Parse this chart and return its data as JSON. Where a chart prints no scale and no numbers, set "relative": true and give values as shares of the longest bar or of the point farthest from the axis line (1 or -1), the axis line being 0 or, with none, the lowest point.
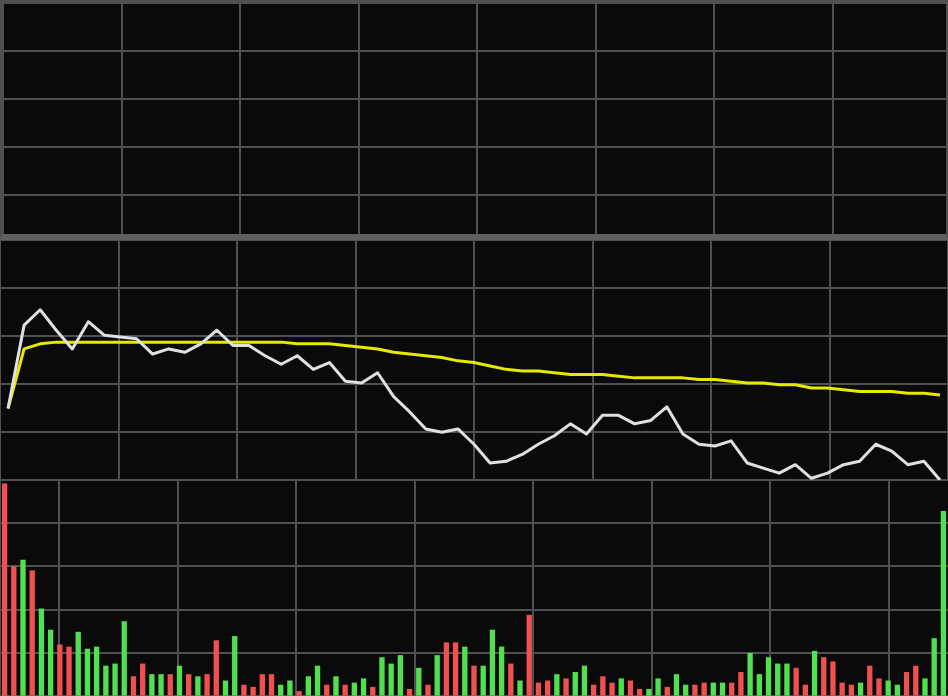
{
  "chart_data": [
    {
      "type": "line",
      "relative": true,
      "grid": true,
      "legend": false,
      "tick_labels": false,
      "categories": [
        null,
        null,
        null,
        null,
        null,
        null,
        null,
        null,
        null,
        null,
        null,
        null,
        null,
        null,
        null,
        null,
        null,
        null,
        null,
        null,
        null,
        null,
        null,
        null,
        null,
        null,
        null,
        null,
        null,
        null,
        null,
        null,
        null,
        null,
        null,
        null,
        null,
        null,
        null,
        null,
        null,
        null,
        null,
        null,
        null,
        null,
        null,
        null,
        null,
        null,
        null,
        null,
        null,
        null,
        null,
        null,
        null,
        null,
        null
      ],
      "series": [
        {
          "color": "#e0e0e0",
          "values": [
            0.42,
            0.91,
            1,
            0.88,
            0.77,
            0.93,
            0.85,
            0.84,
            0.83,
            0.74,
            0.77,
            0.75,
            0.8,
            0.88,
            0.79,
            0.79,
            0.73,
            0.68,
            0.73,
            0.65,
            0.69,
            0.58,
            0.57,
            0.63,
            0.49,
            0.4,
            0.3,
            0.28,
            0.3,
            0.21,
            0.1,
            0.11,
            0.15,
            0.21,
            0.26,
            0.33,
            0.27,
            0.38,
            0.38,
            0.33,
            0.35,
            0.43,
            0.27,
            0.21,
            0.2,
            0.23,
            0.1,
            0.07,
            0.04,
            0.09,
            0.01,
            0.04,
            0.09,
            0.11,
            0.21,
            0.17,
            0.09,
            0.11,
            0
          ]
        },
        {
          "color": "#e8e800",
          "values": [
            0.42,
            0.77,
            0.8,
            0.81,
            0.81,
            0.81,
            0.81,
            0.81,
            0.81,
            0.81,
            0.81,
            0.81,
            0.81,
            0.81,
            0.81,
            0.81,
            0.81,
            0.81,
            0.8,
            0.8,
            0.8,
            0.79,
            0.78,
            0.77,
            0.75,
            0.74,
            0.73,
            0.72,
            0.7,
            0.69,
            0.67,
            0.65,
            0.64,
            0.64,
            0.63,
            0.62,
            0.62,
            0.62,
            0.61,
            0.6,
            0.6,
            0.6,
            0.6,
            0.59,
            0.59,
            0.58,
            0.57,
            0.57,
            0.56,
            0.56,
            0.54,
            0.54,
            0.53,
            0.52,
            0.52,
            0.52,
            0.51,
            0.51,
            0.5
          ]
        }
      ]
    },
    {
      "type": "bar",
      "relative": true,
      "grid": true,
      "legend": false,
      "tick_labels": false,
      "categories": [
        null,
        null,
        null,
        null,
        null,
        null,
        null,
        null,
        null,
        null,
        null,
        null,
        null,
        null,
        null,
        null,
        null,
        null,
        null,
        null,
        null,
        null,
        null,
        null,
        null,
        null,
        null,
        null,
        null,
        null,
        null,
        null,
        null,
        null,
        null,
        null,
        null,
        null,
        null,
        null,
        null,
        null,
        null,
        null,
        null,
        null,
        null,
        null,
        null,
        null,
        null,
        null,
        null,
        null,
        null,
        null,
        null,
        null,
        null,
        null,
        null,
        null,
        null,
        null,
        null,
        null,
        null,
        null,
        null,
        null,
        null,
        null,
        null,
        null,
        null,
        null,
        null,
        null,
        null,
        null,
        null,
        null,
        null,
        null,
        null,
        null,
        null,
        null,
        null,
        null,
        null,
        null,
        null,
        null,
        null,
        null,
        null,
        null,
        null,
        null,
        null,
        null,
        null
      ],
      "values": [
        1,
        0.61,
        0.64,
        0.59,
        0.41,
        0.31,
        0.24,
        0.23,
        0.3,
        0.22,
        0.23,
        0.14,
        0.15,
        0.35,
        0.09,
        0.15,
        0.1,
        0.1,
        0.1,
        0.14,
        0.1,
        0.09,
        0.1,
        0.26,
        0.07,
        0.28,
        0.05,
        0.04,
        0.1,
        0.1,
        0.05,
        0.07,
        0.02,
        0.09,
        0.14,
        0.05,
        0.09,
        0.05,
        0.06,
        0.08,
        0.04,
        0.18,
        0.15,
        0.19,
        0.03,
        0.13,
        0.05,
        0.19,
        0.25,
        0.25,
        0.23,
        0.14,
        0.14,
        0.31,
        0.23,
        0.15,
        0.07,
        0.38,
        0.06,
        0.07,
        0.1,
        0.08,
        0.11,
        0.14,
        0.05,
        0.09,
        0.06,
        0.08,
        0.07,
        0.03,
        0.03,
        0.08,
        0.04,
        0.1,
        0.05,
        0.05,
        0.06,
        0.06,
        0.06,
        0.06,
        0.11,
        0.2,
        0.1,
        0.18,
        0.15,
        0.15,
        0.13,
        0.05,
        0.21,
        0.18,
        0.16,
        0.06,
        0.05,
        0.06,
        0.14,
        0.08,
        0.07,
        0.05,
        0.11,
        0.14,
        0.08,
        0.27,
        0.87
      ],
      "colors": [
        "#f05050",
        "#f05050",
        "#50e050",
        "#f05050",
        "#50e050",
        "#50e050",
        "#f05050",
        "#f05050",
        "#50e050",
        "#50e050",
        "#50e050",
        "#50e050",
        "#50e050",
        "#50e050",
        "#f05050",
        "#f05050",
        "#50e050",
        "#50e050",
        "#f05050",
        "#50e050",
        "#f05050",
        "#50e050",
        "#f05050",
        "#f05050",
        "#50e050",
        "#50e050",
        "#f05050",
        "#f05050",
        "#f05050",
        "#f05050",
        "#50e050",
        "#50e050",
        "#f05050",
        "#50e050",
        "#50e050",
        "#f05050",
        "#50e050",
        "#f05050",
        "#50e050",
        "#50e050",
        "#f05050",
        "#50e050",
        "#50e050",
        "#50e050",
        "#f05050",
        "#50e050",
        "#f05050",
        "#50e050",
        "#f05050",
        "#f05050",
        "#50e050",
        "#f05050",
        "#50e050",
        "#50e050",
        "#50e050",
        "#f05050",
        "#50e050",
        "#f05050",
        "#f05050",
        "#f05050",
        "#50e050",
        "#f05050",
        "#50e050",
        "#50e050",
        "#f05050",
        "#f05050",
        "#f05050",
        "#50e050",
        "#f05050",
        "#f05050",
        "#50e050",
        "#50e050",
        "#f05050",
        "#50e050",
        "#50e050",
        "#f05050",
        "#f05050",
        "#50e050",
        "#50e050",
        "#f05050",
        "#f05050",
        "#50e050",
        "#50e050",
        "#50e050",
        "#50e050",
        "#50e050",
        "#f05050",
        "#f05050",
        "#50e050",
        "#f05050",
        "#f05050",
        "#f05050",
        "#f05050",
        "#50e050",
        "#f05050",
        "#f05050",
        "#50e050",
        "#50e050",
        "#f05050",
        "#f05050",
        "#50e050",
        "#50e050",
        "#50e050"
      ]
    }
  ]
}
